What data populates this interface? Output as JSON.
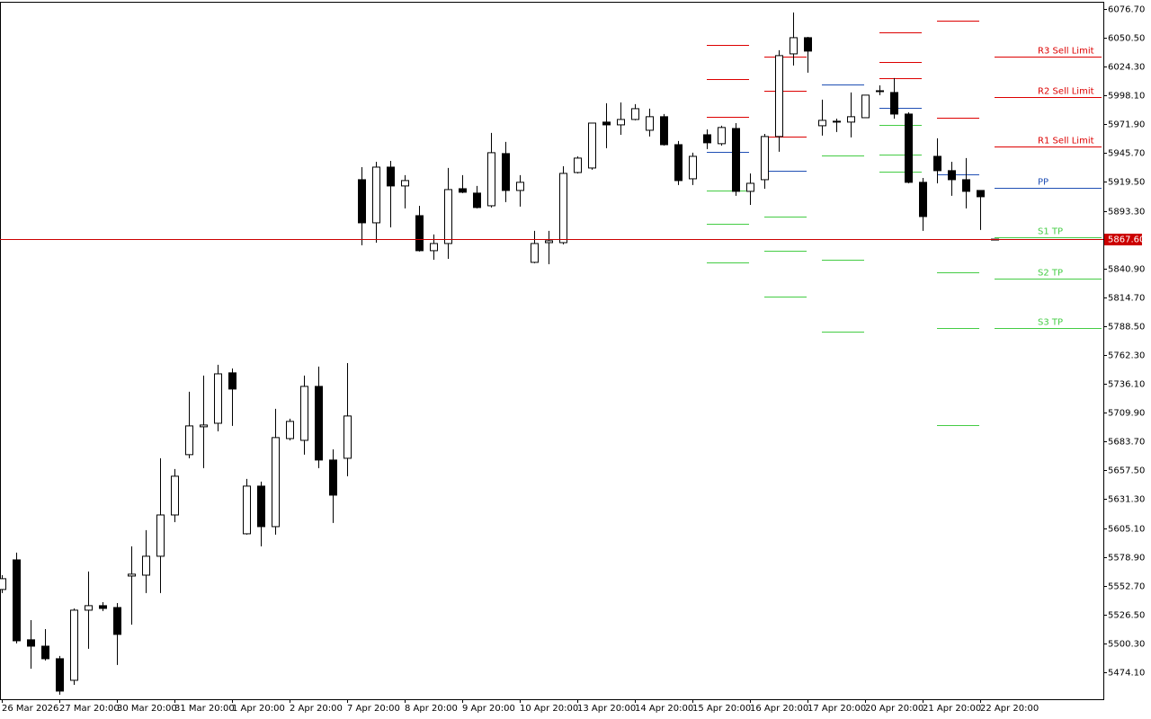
{
  "chart_data": {
    "type": "candlestick",
    "categories": [
      "26 Mar 2026",
      null,
      null,
      null,
      "27 Mar 20:00",
      null,
      null,
      null,
      "30 Mar 20:00",
      null,
      null,
      null,
      "31 Mar 20:00",
      null,
      null,
      null,
      "1 Apr 20:00",
      null,
      null,
      null,
      "2 Apr 20:00",
      null,
      null,
      null,
      "7 Apr 20:00",
      null,
      null,
      null,
      "8 Apr 20:00",
      null,
      null,
      null,
      "9 Apr 20:00",
      null,
      null,
      null,
      "10 Apr 20:00",
      null,
      null,
      null,
      "13 Apr 20:00",
      null,
      null,
      null,
      "14 Apr 20:00",
      null,
      null,
      null,
      "15 Apr 20:00",
      null,
      null,
      null,
      "16 Apr 20:00",
      null,
      null,
      null,
      "17 Apr 20:00",
      null,
      null,
      null,
      "20 Apr 20:00",
      null,
      null,
      null,
      "21 Apr 20:00",
      null,
      null,
      null,
      "22 Apr 20:00",
      null
    ],
    "series": {
      "open": [
        5549.3,
        5576.2,
        5503.6,
        5497.8,
        5486.4,
        5466.8,
        5530.5,
        5534.6,
        5532.9,
        5561.5,
        5562.3,
        5579.5,
        5617.0,
        5671.8,
        5697.1,
        5700.3,
        5746.1,
        5599.9,
        5643.2,
        5606.4,
        5686.4,
        5684.8,
        5733.8,
        5666.9,
        5668.5,
        5921.6,
        5882.4,
        5933.0,
        5915.9,
        5888.9,
        5857.1,
        5863.6,
        5913.4,
        5909.4,
        5897.9,
        5945.3,
        5911.8,
        5846.5,
        5864.4,
        5864.4,
        5928.1,
        5932.2,
        5973.9,
        5971.4,
        5976.3,
        5966.5,
        5978.8,
        5953.4,
        5922.4,
        5962.4,
        5954.3,
        5968.1,
        5911.0,
        5921.6,
        5960.8,
        6035.9,
        6050.6,
        5970.6,
        5974.7,
        5973.9,
        5977.9,
        6001.6,
        6000.8,
        5981.2,
        5919.2,
        5942.8,
        5929.8,
        5921.6,
        5911.8,
        5867.6
      ],
      "high": [
        5562.3,
        5582.8,
        5521.5,
        5513.3,
        5488.9,
        5532.1,
        5565.6,
        5537.8,
        5537.0,
        5588.5,
        5603.2,
        5668.5,
        5658.7,
        5728.9,
        5743.6,
        5753.4,
        5750.1,
        5649.7,
        5647.3,
        5713.4,
        5704.4,
        5743.6,
        5751.8,
        5676.6,
        5755.0,
        5933.0,
        5937.9,
        5938.7,
        5925.7,
        5897.9,
        5871.8,
        5932.2,
        5925.7,
        5915.9,
        5964.1,
        5955.9,
        5925.7,
        5875.1,
        5875.1,
        5933.8,
        5942.8,
        5973.0,
        5991.0,
        5991.8,
        5990.2,
        5986.1,
        5981.2,
        5956.7,
        5946.1,
        5967.3,
        5970.6,
        5973.0,
        5927.3,
        5963.2,
        6039.2,
        6073.5,
        6051.4,
        5994.3,
        5977.1,
        6000.8,
        5998.4,
        6007.3,
        6013.9,
        5982.8,
        5923.2,
        5959.2,
        5937.9,
        5941.2,
        5911.8,
        5867.6
      ],
      "low": [
        5546.0,
        5500.3,
        5477.4,
        5484.8,
        5453.7,
        5462.7,
        5495.4,
        5529.7,
        5480.7,
        5517.4,
        5546.0,
        5546.0,
        5610.5,
        5668.5,
        5659.5,
        5693.0,
        5697.9,
        5599.1,
        5588.5,
        5599.1,
        5684.8,
        5671.8,
        5659.5,
        5609.7,
        5652.2,
        5862.0,
        5864.4,
        5878.3,
        5895.5,
        5856.3,
        5848.9,
        5849.7,
        5909.4,
        5895.5,
        5896.3,
        5901.2,
        5897.1,
        5845.7,
        5844.8,
        5862.8,
        5927.3,
        5930.6,
        5950.2,
        5962.4,
        5975.5,
        5960.8,
        5952.6,
        5916.7,
        5916.7,
        5949.4,
        5952.6,
        5906.9,
        5898.7,
        5913.4,
        5946.9,
        6025.3,
        6018.8,
        5961.6,
        5964.9,
        5960.0,
        5977.9,
        5998.4,
        5977.1,
        5918.3,
        5875.1,
        5918.3,
        5906.9,
        5895.5,
        5875.9,
        5867.6
      ],
      "close": [
        5559.1,
        5502.7,
        5497.8,
        5486.4,
        5457.0,
        5530.5,
        5534.6,
        5532.1,
        5508.5,
        5563.2,
        5579.5,
        5617.0,
        5652.2,
        5697.9,
        5698.7,
        5745.2,
        5731.4,
        5643.2,
        5606.4,
        5687.3,
        5702.0,
        5733.8,
        5666.9,
        5635.0,
        5706.9,
        5882.4,
        5933.0,
        5915.9,
        5920.8,
        5857.1,
        5863.6,
        5912.6,
        5910.2,
        5896.3,
        5946.1,
        5911.8,
        5919.2,
        5863.6,
        5866.1,
        5927.3,
        5941.2,
        5973.0,
        5971.4,
        5976.3,
        5986.1,
        5978.8,
        5953.4,
        5920.8,
        5942.8,
        5955.1,
        5969.0,
        5911.0,
        5918.3,
        5960.8,
        6034.3,
        6050.6,
        6038.4,
        5975.5,
        5974.7,
        5978.8,
        5998.4,
        6002.4,
        5981.2,
        5919.2,
        5888.1,
        5929.8,
        5921.6,
        5911.0,
        5906.1,
        5867.6
      ]
    },
    "up_color": "#ffffff",
    "down_color": "#000000",
    "wick_color": "#000000",
    "ylim": [
      5449.6,
      6083.2
    ],
    "yticks": [
      {
        "value": 5474.1,
        "label": "5474.10"
      },
      {
        "value": 5500.3,
        "label": "5500.30"
      },
      {
        "value": 5526.5,
        "label": "5526.50"
      },
      {
        "value": 5552.7,
        "label": "5552.70"
      },
      {
        "value": 5578.9,
        "label": "5578.90"
      },
      {
        "value": 5605.1,
        "label": "5605.10"
      },
      {
        "value": 5631.3,
        "label": "5631.30"
      },
      {
        "value": 5657.5,
        "label": "5657.50"
      },
      {
        "value": 5683.7,
        "label": "5683.70"
      },
      {
        "value": 5709.9,
        "label": "5709.90"
      },
      {
        "value": 5736.1,
        "label": "5736.10"
      },
      {
        "value": 5762.3,
        "label": "5762.30"
      },
      {
        "value": 5788.5,
        "label": "5788.50"
      },
      {
        "value": 5814.7,
        "label": "5814.70"
      },
      {
        "value": 5840.9,
        "label": "5840.90"
      },
      {
        "value": 5893.3,
        "label": "5893.30"
      },
      {
        "value": 5919.5,
        "label": "5919.50"
      },
      {
        "value": 5945.7,
        "label": "5945.70"
      },
      {
        "value": 5971.9,
        "label": "5971.90"
      },
      {
        "value": 5998.1,
        "label": "5998.10"
      },
      {
        "value": 6024.3,
        "label": "6024.30"
      },
      {
        "value": 6050.5,
        "label": "6050.50"
      },
      {
        "value": 6076.7,
        "label": "6076.70"
      }
    ],
    "current_price": {
      "value": 5867.6,
      "label": "5867.60",
      "color": "#cc0000"
    },
    "pivots": {
      "names": [
        "R3 Sell Limit",
        "R2 Sell Limit",
        "R1 Sell Limit",
        "PP",
        "S1 TP",
        "S2 TP",
        "S3 TP"
      ],
      "colors": [
        "#dd0000",
        "#dd0000",
        "#dd0000",
        "#1f4fb4",
        "#44cc44",
        "#44cc44",
        "#44cc44"
      ],
      "periods": [
        [
          6044.1,
          6013.0,
          5978.8,
          5946.9,
          5911.8,
          5881.6,
          5846.5
        ],
        [
          6033.5,
          6002.4,
          5960.8,
          5929.8,
          5888.1,
          5857.1,
          5815.5
        ],
        [
          null,
          null,
          null,
          6008.1,
          5943.6,
          5848.9,
          5783.6
        ],
        [
          6055.5,
          6028.6,
          6013.9,
          5986.9,
          5971.4,
          5944.5,
          5928.9
        ],
        [
          6066.1,
          null,
          5977.9,
          5926.5,
          5837.5,
          5786.9,
          5698.7
        ],
        [
          6033.5,
          5996.7,
          5951.8,
          5914.3,
          5869.3,
          5831.8,
          5786.9
        ]
      ]
    }
  }
}
